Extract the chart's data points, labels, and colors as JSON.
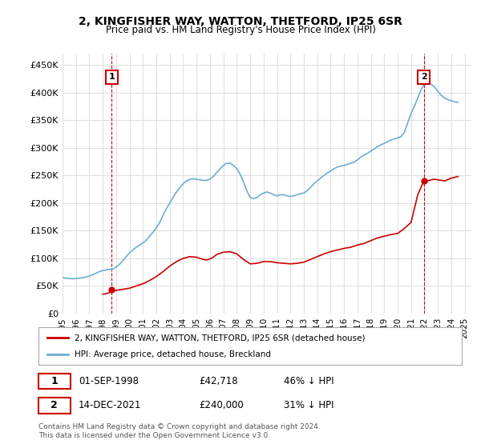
{
  "title": "2, KINGFISHER WAY, WATTON, THETFORD, IP25 6SR",
  "subtitle": "Price paid vs. HM Land Registry's House Price Index (HPI)",
  "ylabel_prefix": "£",
  "yticks": [
    0,
    50000,
    100000,
    150000,
    200000,
    250000,
    300000,
    350000,
    400000,
    450000
  ],
  "ytick_labels": [
    "£0",
    "£50K",
    "£100K",
    "£150K",
    "£200K",
    "£250K",
    "£300K",
    "£350K",
    "£400K",
    "£450K"
  ],
  "xlim_start": 1995.0,
  "xlim_end": 2025.5,
  "ylim": [
    0,
    470000
  ],
  "hpi_color": "#6baed6",
  "price_color": "#cc0000",
  "marker1_x": 1998.67,
  "marker1_y": 42718,
  "marker2_x": 2021.95,
  "marker2_y": 240000,
  "annotation1_label": "1",
  "annotation2_label": "2",
  "legend_line1": "2, KINGFISHER WAY, WATTON, THETFORD, IP25 6SR (detached house)",
  "legend_line2": "HPI: Average price, detached house, Breckland",
  "table_row1": [
    "1",
    "01-SEP-1998",
    "£42,718",
    "46% ↓ HPI"
  ],
  "table_row2": [
    "2",
    "14-DEC-2021",
    "£240,000",
    "31% ↓ HPI"
  ],
  "footnote": "Contains HM Land Registry data © Crown copyright and database right 2024.\nThis data is licensed under the Open Government Licence v3.0.",
  "grid_color": "#e0e0e0",
  "background_color": "#ffffff",
  "hpi_data_x": [
    1995.0,
    1995.25,
    1995.5,
    1995.75,
    1996.0,
    1996.25,
    1996.5,
    1996.75,
    1997.0,
    1997.25,
    1997.5,
    1997.75,
    1998.0,
    1998.25,
    1998.5,
    1998.75,
    1999.0,
    1999.25,
    1999.5,
    1999.75,
    2000.0,
    2000.25,
    2000.5,
    2000.75,
    2001.0,
    2001.25,
    2001.5,
    2001.75,
    2002.0,
    2002.25,
    2002.5,
    2002.75,
    2003.0,
    2003.25,
    2003.5,
    2003.75,
    2004.0,
    2004.25,
    2004.5,
    2004.75,
    2005.0,
    2005.25,
    2005.5,
    2005.75,
    2006.0,
    2006.25,
    2006.5,
    2006.75,
    2007.0,
    2007.25,
    2007.5,
    2007.75,
    2008.0,
    2008.25,
    2008.5,
    2008.75,
    2009.0,
    2009.25,
    2009.5,
    2009.75,
    2010.0,
    2010.25,
    2010.5,
    2010.75,
    2011.0,
    2011.25,
    2011.5,
    2011.75,
    2012.0,
    2012.25,
    2012.5,
    2012.75,
    2013.0,
    2013.25,
    2013.5,
    2013.75,
    2014.0,
    2014.25,
    2014.5,
    2014.75,
    2015.0,
    2015.25,
    2015.5,
    2015.75,
    2016.0,
    2016.25,
    2016.5,
    2016.75,
    2017.0,
    2017.25,
    2017.5,
    2017.75,
    2018.0,
    2018.25,
    2018.5,
    2018.75,
    2019.0,
    2019.25,
    2019.5,
    2019.75,
    2020.0,
    2020.25,
    2020.5,
    2020.75,
    2021.0,
    2021.25,
    2021.5,
    2021.75,
    2022.0,
    2022.25,
    2022.5,
    2022.75,
    2023.0,
    2023.25,
    2023.5,
    2023.75,
    2024.0,
    2024.25,
    2024.5
  ],
  "hpi_data_y": [
    65000,
    64000,
    63500,
    63000,
    63500,
    64000,
    65000,
    66000,
    68000,
    70000,
    73000,
    76000,
    78000,
    79000,
    80000,
    81000,
    84000,
    89000,
    96000,
    103000,
    110000,
    115000,
    120000,
    124000,
    128000,
    133000,
    140000,
    147000,
    155000,
    165000,
    178000,
    190000,
    200000,
    210000,
    220000,
    228000,
    235000,
    240000,
    243000,
    244000,
    243000,
    242000,
    241000,
    241000,
    243000,
    248000,
    255000,
    262000,
    268000,
    272000,
    272000,
    268000,
    262000,
    252000,
    238000,
    222000,
    210000,
    208000,
    210000,
    215000,
    218000,
    220000,
    218000,
    215000,
    213000,
    215000,
    215000,
    213000,
    212000,
    213000,
    215000,
    217000,
    218000,
    222000,
    228000,
    235000,
    240000,
    245000,
    250000,
    254000,
    258000,
    262000,
    265000,
    267000,
    268000,
    270000,
    272000,
    274000,
    278000,
    283000,
    287000,
    290000,
    294000,
    298000,
    302000,
    305000,
    308000,
    311000,
    314000,
    316000,
    318000,
    320000,
    328000,
    345000,
    362000,
    375000,
    390000,
    405000,
    415000,
    418000,
    415000,
    410000,
    402000,
    395000,
    390000,
    387000,
    385000,
    383000,
    382000
  ],
  "price_data_x": [
    1998.0,
    1998.25,
    1998.5,
    1998.67,
    1998.75,
    1999.0,
    1999.5,
    2000.0,
    2000.5,
    2001.0,
    2001.5,
    2002.0,
    2002.5,
    2003.0,
    2003.5,
    2004.0,
    2004.5,
    2005.0,
    2005.25,
    2005.5,
    2005.75,
    2006.0,
    2006.25,
    2006.5,
    2007.0,
    2007.5,
    2008.0,
    2008.5,
    2009.0,
    2009.5,
    2010.0,
    2010.5,
    2011.0,
    2011.5,
    2012.0,
    2012.5,
    2013.0,
    2013.5,
    2014.0,
    2014.5,
    2015.0,
    2015.5,
    2016.0,
    2016.5,
    2017.0,
    2017.5,
    2018.0,
    2018.5,
    2019.0,
    2019.5,
    2020.0,
    2020.5,
    2021.0,
    2021.5,
    2021.95,
    2022.0,
    2022.25,
    2022.5,
    2022.75,
    2023.0,
    2023.5,
    2024.0,
    2024.5
  ],
  "price_data_y": [
    35000,
    36000,
    38000,
    42718,
    40000,
    42000,
    44000,
    46000,
    50000,
    54000,
    60000,
    67000,
    76000,
    86000,
    94000,
    100000,
    103000,
    102000,
    100000,
    98000,
    97000,
    99000,
    102000,
    107000,
    111000,
    112000,
    108000,
    98000,
    90000,
    91000,
    94000,
    94000,
    92000,
    91000,
    90000,
    91000,
    93000,
    98000,
    103000,
    108000,
    112000,
    115000,
    118000,
    120000,
    124000,
    127000,
    132000,
    137000,
    140000,
    143000,
    145000,
    154000,
    165000,
    215000,
    240000,
    238000,
    240000,
    242000,
    243000,
    242000,
    240000,
    245000,
    248000
  ]
}
